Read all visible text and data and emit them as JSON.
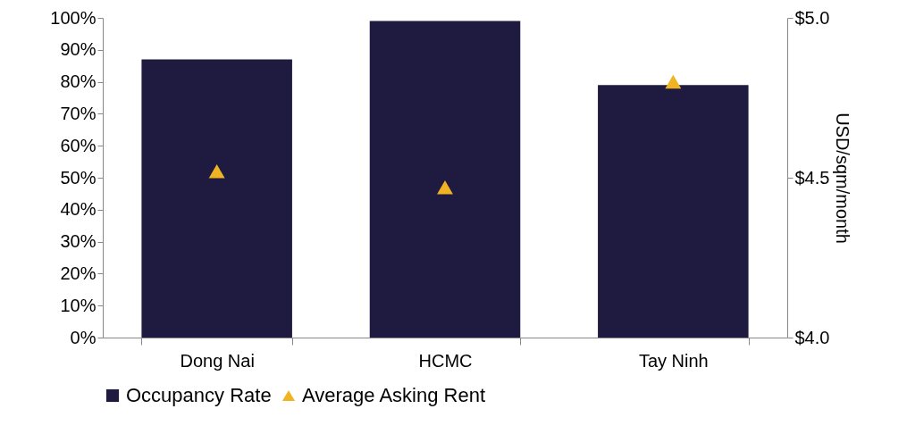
{
  "chart_data": {
    "type": "bar",
    "categories": [
      "Dong Nai",
      "HCMC",
      "Tay Ninh"
    ],
    "series": [
      {
        "name": "Occupancy Rate",
        "color": "#1f1a40",
        "values": [
          87,
          99,
          79
        ]
      },
      {
        "name": "Average Asking Rent",
        "type": "scatter",
        "axis": "y2",
        "color": "#f0b323",
        "values": [
          4.52,
          4.47,
          4.8
        ]
      }
    ],
    "y2label": "USD/sqm/month",
    "ylim": [
      0,
      100
    ],
    "yticks": [
      {
        "value": 0,
        "label": "0%"
      },
      {
        "value": 10,
        "label": "10%"
      },
      {
        "value": 20,
        "label": "20%"
      },
      {
        "value": 30,
        "label": "30%"
      },
      {
        "value": 40,
        "label": "40%"
      },
      {
        "value": 50,
        "label": "50%"
      },
      {
        "value": 60,
        "label": "60%"
      },
      {
        "value": 70,
        "label": "70%"
      },
      {
        "value": 80,
        "label": "80%"
      },
      {
        "value": 90,
        "label": "90%"
      },
      {
        "value": 100,
        "label": "100%"
      }
    ],
    "y2lim": [
      4.0,
      5.0
    ],
    "y2ticks": [
      {
        "value": 4.0,
        "label": "$4.0"
      },
      {
        "value": 4.5,
        "label": "$4.5"
      },
      {
        "value": 5.0,
        "label": "$5.0"
      }
    ],
    "marker": "triangle",
    "grid": false,
    "legend": "bottom"
  }
}
